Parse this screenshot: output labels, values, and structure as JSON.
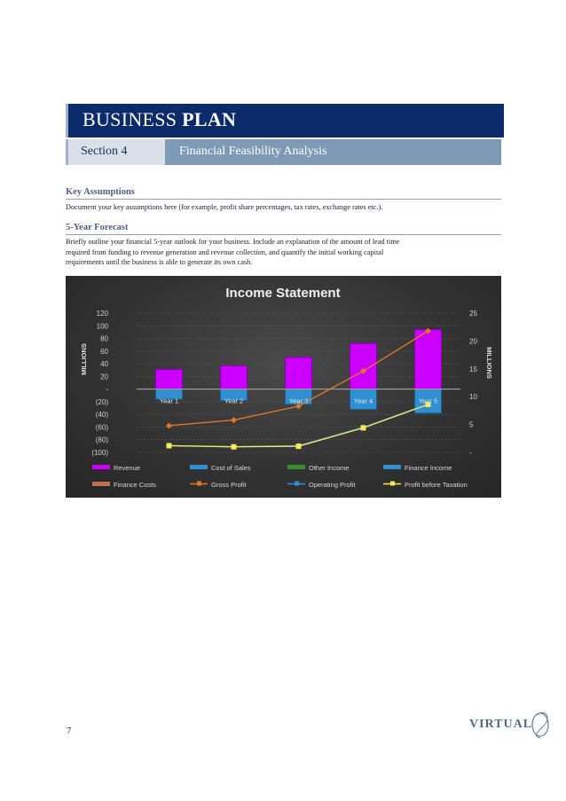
{
  "header": {
    "title_regular": "BUSINESS",
    "title_bold": "PLAN",
    "section_label": "Section 4",
    "section_title": "Financial Feasibility Analysis"
  },
  "key_assumptions": {
    "heading": "Key Assumptions",
    "body": "Document your key assumptions here (for example, profit share percentages, tax rates, exchange rates etc.)."
  },
  "forecast": {
    "heading": "5-Year Forecast",
    "body_lines": [
      "Briefly outline your financial 5-year outlook for your business. Include an explanation of the amount of lead time",
      "required from funding to revenue generation and revenue collection, and quantify the initial working capital",
      "requirements until the business is able to generate its own cash."
    ]
  },
  "chart_data": {
    "type": "bar",
    "title": "Income Statement",
    "categories": [
      "Year 1",
      "Year 2",
      "Year 3",
      "Year 4",
      "Year 5"
    ],
    "ylabel_left": "MILLIONS",
    "ylabel_right": "MILLIONS",
    "ylim_left": [
      -100,
      120
    ],
    "ylim_right": [
      0,
      25
    ],
    "yticks_left": [
      "120",
      "100",
      "80",
      "60",
      "40",
      "20",
      "-",
      "(20)",
      "(40)",
      "(60)",
      "(80)",
      "(100)"
    ],
    "yticks_right": [
      "25",
      "20",
      "15",
      "10",
      "5",
      "-"
    ],
    "bar_series": [
      {
        "name": "Revenue",
        "axis": "left",
        "color": "#cc00ff",
        "values": [
          31,
          37,
          50,
          72,
          94
        ]
      },
      {
        "name": "Cost of Sales",
        "axis": "left",
        "color": "#2f8fd0",
        "values": [
          -16,
          -18,
          -24,
          -32,
          -38
        ]
      },
      {
        "name": "Other Income",
        "axis": "left",
        "color": "#3a8a2a",
        "values": [
          0,
          0,
          0,
          0,
          0
        ]
      },
      {
        "name": "Finance Income",
        "axis": "left",
        "color": "#2f8fd0",
        "values": [
          0,
          0,
          0,
          0,
          0
        ]
      },
      {
        "name": "Finance Costs",
        "axis": "left",
        "color": "#c07050",
        "values": [
          0,
          0,
          0,
          0,
          0
        ]
      }
    ],
    "line_series": [
      {
        "name": "Gross Profit",
        "axis": "right",
        "color": "#e0762a",
        "marker": "diamond",
        "values": [
          4.8,
          5.8,
          8.3,
          14.6,
          21.8
        ]
      },
      {
        "name": "Operating Profit",
        "axis": "right",
        "color": "#2f8fd0",
        "marker": "diamond",
        "values": [
          1.2,
          1.0,
          1.2,
          4.5,
          8.7
        ]
      },
      {
        "name": "Profit before Taxation",
        "axis": "right",
        "color": "#f5e85a",
        "marker": "square",
        "values": [
          1.2,
          1.0,
          1.1,
          4.4,
          8.6
        ]
      }
    ],
    "legend": [
      {
        "name": "Revenue",
        "kind": "bar",
        "color": "#cc00ff"
      },
      {
        "name": "Cost of Sales",
        "kind": "bar",
        "color": "#2f8fd0"
      },
      {
        "name": "Other Income",
        "kind": "bar",
        "color": "#3a8a2a"
      },
      {
        "name": "Finance Income",
        "kind": "bar",
        "color": "#2f8fd0"
      },
      {
        "name": "Finance Costs",
        "kind": "bar",
        "color": "#c07050"
      },
      {
        "name": "Gross Profit",
        "kind": "line",
        "color": "#e0762a"
      },
      {
        "name": "Operating Profit",
        "kind": "line",
        "color": "#2f8fd0"
      },
      {
        "name": "Profit before Taxation",
        "kind": "line",
        "color": "#f5e85a"
      }
    ],
    "legend_position": "bottom",
    "grid": true
  },
  "footer": {
    "page_number": "7",
    "logo_text": "VIRTUAL"
  }
}
